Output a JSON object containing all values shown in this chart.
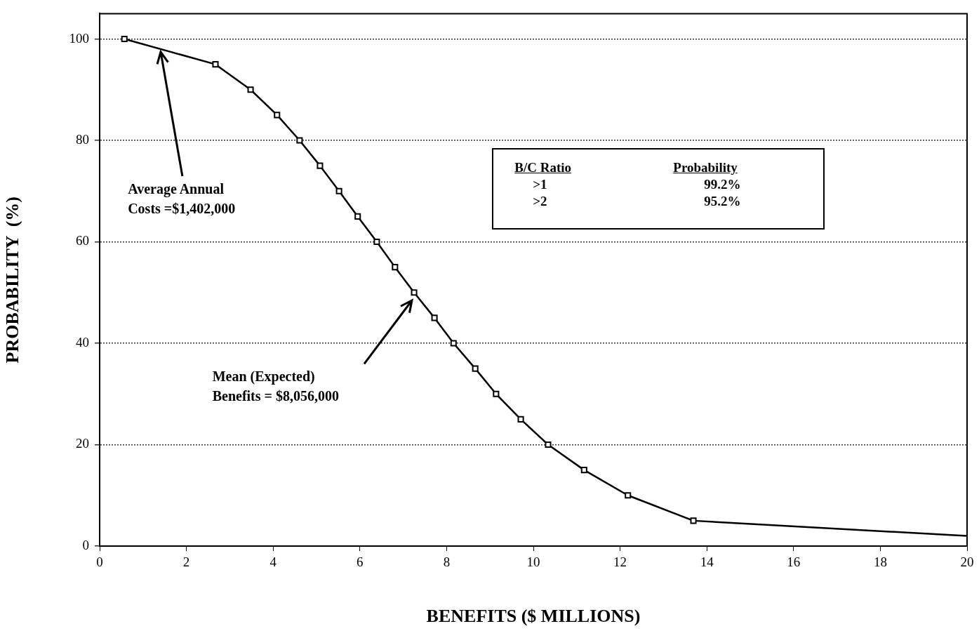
{
  "chart_data": {
    "type": "line",
    "xlabel": "BENEFITS ($ MILLIONS)",
    "ylabel": "PROBABILITY  (%)",
    "xlim": [
      0,
      20
    ],
    "xticks": [
      0,
      2,
      4,
      6,
      8,
      10,
      12,
      14,
      16,
      18,
      20
    ],
    "ylim": [
      0,
      105
    ],
    "yticks": [
      0,
      20,
      40,
      60,
      80,
      100
    ],
    "grid": "y",
    "legend": false,
    "line_style": "solid",
    "series": [
      {
        "color": "#000000",
        "marker": "square",
        "x": [
          0.57,
          2.67,
          3.48,
          4.09,
          4.61,
          5.08,
          5.52,
          5.95,
          6.39,
          6.81,
          7.25,
          7.72,
          8.16,
          8.66,
          9.14,
          9.71,
          10.34,
          11.17,
          12.18,
          13.69
        ],
        "values": [
          100,
          95,
          90,
          85,
          80,
          75,
          70,
          65,
          60,
          55,
          50,
          45,
          40,
          35,
          30,
          25,
          20,
          15,
          10,
          5
        ]
      },
      {
        "color": "#000000",
        "marker": "none",
        "x": [
          13.69,
          20
        ],
        "values": [
          5,
          2
        ]
      }
    ],
    "annotations": [
      "Average Annual\nCosts =$1,402,000",
      "Mean (Expected)\nBenefits = $8,056,000",
      "B/C Ratio",
      "Probability",
      ">1",
      "99.2%",
      ">2",
      "95.2%"
    ]
  }
}
